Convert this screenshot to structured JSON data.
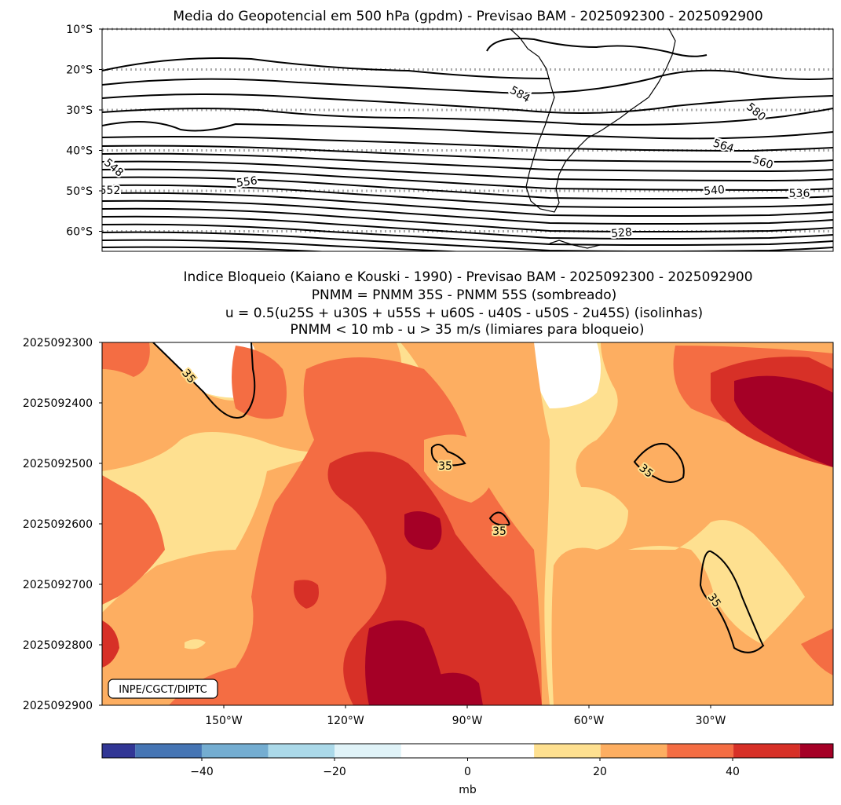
{
  "chart_data": [
    {
      "type": "contour",
      "title": "Media do Geopotencial em 500 hPa (gpdm) - Previsao BAM - 2025092300 - 2025092900",
      "yticks": [
        "10°S",
        "20°S",
        "30°S",
        "40°S",
        "50°S",
        "60°S"
      ],
      "ylim": [
        -65,
        -10
      ],
      "contour_labels": [
        "584",
        "580",
        "564",
        "560",
        "556",
        "548",
        "540",
        "536",
        "528",
        "552"
      ],
      "gridlines": "dotted gray at latitude ticks"
    },
    {
      "type": "heatmap",
      "title_lines": [
        "Indice Bloqueio (Kaiano e Kouski - 1990) - Previsao BAM - 2025092300 - 2025092900",
        "PNMM = PNMM 35S - PNMM 55S (sombreado)",
        "u = 0.5(u25S + u30S + u55S + u60S - u40S - u50S - 2u45S) (isolinhas)",
        "PNMM < 10 mb - u > 35 m/s (limiares para bloqueio)"
      ],
      "yticks": [
        "2025092300",
        "2025092400",
        "2025092500",
        "2025092600",
        "2025092700",
        "2025092800",
        "2025092900"
      ],
      "xticks": [
        "150°W",
        "120°W",
        "90°W",
        "60°W",
        "30°W"
      ],
      "xlim": [
        -180,
        0
      ],
      "contour_level": "35",
      "contour_labels": [
        "35",
        "35",
        "35",
        "35",
        "35"
      ],
      "credit": "INPE/CGCT/DIPTC",
      "colorbar": {
        "label": "mb",
        "ticks": [
          "−40",
          "−20",
          "0",
          "20",
          "40"
        ],
        "levels": [
          -55,
          -50,
          -40,
          -30,
          -20,
          -10,
          10,
          20,
          30,
          40,
          50,
          55
        ],
        "colors": [
          "#313695",
          "#4575b4",
          "#74add1",
          "#abd9e9",
          "#e0f3f8",
          "#ffffff",
          "#fee090",
          "#fdae61",
          "#f46d43",
          "#d73027",
          "#a50026"
        ]
      }
    }
  ]
}
